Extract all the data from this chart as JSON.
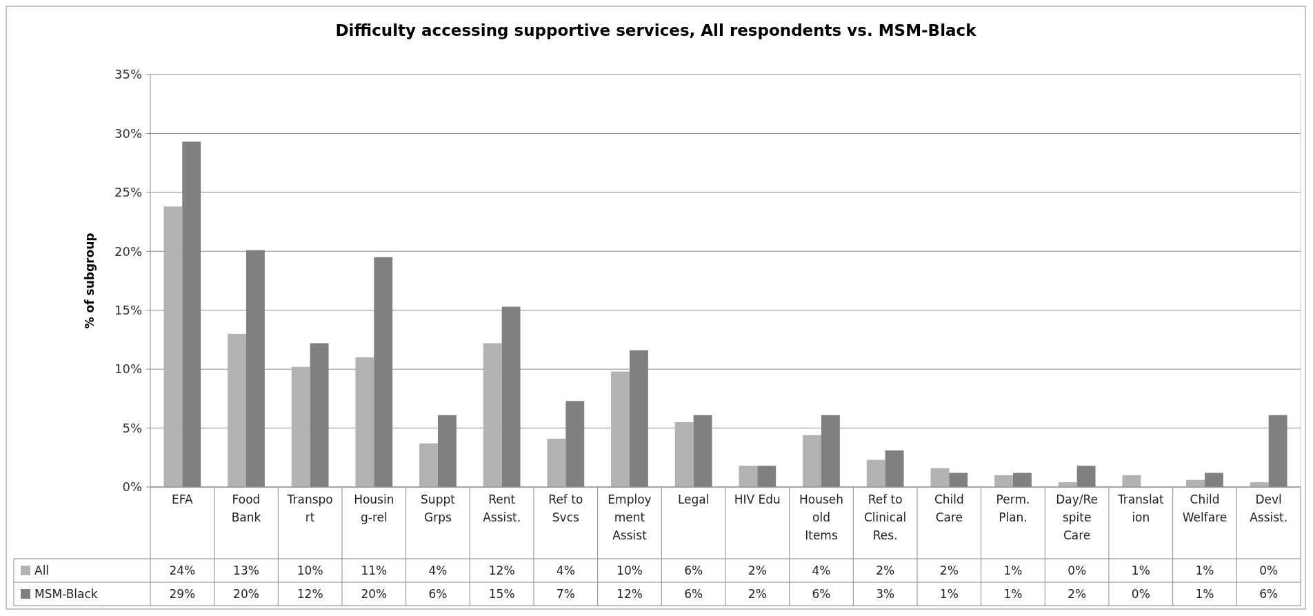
{
  "chart_data": {
    "type": "bar",
    "title": "Difficulty accessing supportive services, All respondents vs. MSM-Black",
    "ylabel": "% of subgroup",
    "categories": [
      "EFA",
      "Food Bank",
      "Transport",
      "Housing-rel",
      "Suppt Grps",
      "Rent Assist.",
      "Ref to Svcs",
      "Employment Assist",
      "Legal",
      "HIV Edu",
      "Household Items",
      "Ref to Clinical Res.",
      "Child Care",
      "Perm. Plan.",
      "Day/Respite Care",
      "Translation",
      "Child Welfare",
      "Devl Assist."
    ],
    "series": [
      {
        "name": "All",
        "color": "#b2b2b2",
        "values": [
          23.8,
          13.0,
          10.2,
          11.0,
          3.7,
          12.2,
          4.1,
          9.8,
          5.5,
          1.8,
          4.4,
          2.3,
          1.6,
          1.0,
          0.4,
          1.0,
          0.6,
          0.4
        ],
        "value_labels": [
          "24%",
          "13%",
          "10%",
          "11%",
          "4%",
          "12%",
          "4%",
          "10%",
          "6%",
          "2%",
          "4%",
          "2%",
          "2%",
          "1%",
          "0%",
          "1%",
          "1%",
          "0%"
        ]
      },
      {
        "name": "MSM-Black",
        "color": "#808080",
        "values": [
          29.3,
          20.1,
          12.2,
          19.5,
          6.1,
          15.3,
          7.3,
          11.6,
          6.1,
          1.8,
          6.1,
          3.1,
          1.2,
          1.2,
          1.8,
          0,
          1.2,
          6.1
        ],
        "value_labels": [
          "29%",
          "20%",
          "12%",
          "20%",
          "6%",
          "15%",
          "7%",
          "12%",
          "6%",
          "2%",
          "6%",
          "3%",
          "1%",
          "1%",
          "2%",
          "0%",
          "1%",
          "6%"
        ]
      }
    ],
    "ylim": [
      0,
      35
    ],
    "yticks": [
      {
        "value": 0,
        "label": "0%"
      },
      {
        "value": 5,
        "label": "5%"
      },
      {
        "value": 10,
        "label": "10%"
      },
      {
        "value": 15,
        "label": "15%"
      },
      {
        "value": 20,
        "label": "20%"
      },
      {
        "value": 25,
        "label": "25%"
      },
      {
        "value": 30,
        "label": "30%"
      },
      {
        "value": 35,
        "label": "35%"
      }
    ],
    "grid": "y",
    "legend": "bottom"
  }
}
